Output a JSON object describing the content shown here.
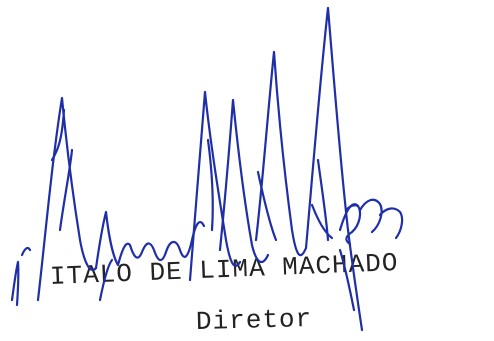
{
  "signatory": {
    "name": "ITALO DE LIMA MACHADO",
    "role": "Diretor"
  },
  "colors": {
    "signature_ink": "#1f2fa8",
    "typed_text": "#222222",
    "background": "#ffffff"
  }
}
